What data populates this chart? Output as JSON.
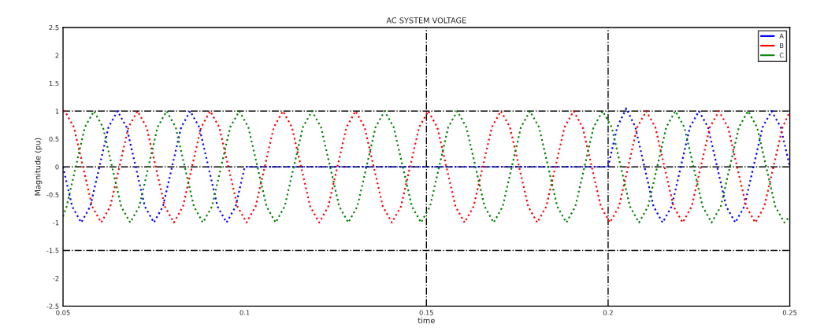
{
  "chart_data": {
    "type": "line",
    "title": "AC SYSTEM VOLTAGE",
    "xlabel": "time",
    "ylabel": "Magnitude (pu)",
    "xlim": [
      0.05,
      0.25
    ],
    "xticks": [
      0.05,
      0.1,
      0.15,
      0.2,
      0.25
    ],
    "ylim": [
      -2.5,
      2.5
    ],
    "yticks": [
      -2.5,
      -2,
      -1.5,
      -1,
      -0.5,
      0,
      0.5,
      1,
      1.5,
      2,
      2.5
    ],
    "grid": false,
    "legend": "top right",
    "line_style": "dotted",
    "marker": "none",
    "ref_lines": [
      {
        "axis": "y",
        "value": 1,
        "color": "#000000",
        "line_style": "dashdot"
      },
      {
        "axis": "y",
        "value": 0,
        "color": "#000000",
        "line_style": "dashdot"
      },
      {
        "axis": "y",
        "value": -1.5,
        "color": "#000000",
        "line_style": "dashdot"
      },
      {
        "axis": "x",
        "value": 0.15,
        "color": "#000000",
        "line_style": "dashdot"
      },
      {
        "axis": "x",
        "value": 0.2,
        "color": "#000000",
        "line_style": "dashdot"
      }
    ],
    "series": [
      {
        "name": "A",
        "color": "#0000ff",
        "x": [
          0.05,
          0.0525,
          0.055,
          0.0575,
          0.06,
          0.0625,
          0.065,
          0.0675,
          0.07,
          0.0725,
          0.075,
          0.0775,
          0.08,
          0.0825,
          0.085,
          0.0875,
          0.09,
          0.0925,
          0.095,
          0.0975,
          0.1,
          0.2,
          0.2025,
          0.205,
          0.2075,
          0.21,
          0.2125,
          0.215,
          0.2175,
          0.22,
          0.2225,
          0.225,
          0.2275,
          0.23,
          0.2325,
          0.235,
          0.2375,
          0.24,
          0.2425,
          0.245,
          0.2475,
          0.25
        ],
        "values": [
          0,
          -0.71,
          -1,
          -0.71,
          0,
          0.71,
          1,
          0.71,
          0,
          -0.71,
          -1,
          -0.71,
          0,
          0.71,
          1,
          0.71,
          0,
          -0.71,
          -1,
          -0.71,
          0,
          0,
          0.71,
          1.05,
          0.71,
          0,
          -0.71,
          -1,
          -0.71,
          0,
          0.71,
          1,
          0.71,
          0,
          -0.71,
          -1,
          -0.71,
          0,
          0.71,
          1,
          0.71,
          0
        ]
      },
      {
        "name": "B",
        "color": "#ff0000",
        "x": [
          0.05,
          0.0505,
          0.053,
          0.0555,
          0.058,
          0.0605,
          0.063,
          0.0655,
          0.068,
          0.0705,
          0.073,
          0.0755,
          0.078,
          0.0805,
          0.083,
          0.0855,
          0.088,
          0.0905,
          0.093,
          0.0955,
          0.098,
          0.1005,
          0.103,
          0.1055,
          0.108,
          0.1105,
          0.113,
          0.1155,
          0.118,
          0.1205,
          0.123,
          0.1255,
          0.128,
          0.1305,
          0.133,
          0.1355,
          0.138,
          0.1405,
          0.143,
          0.1455,
          0.148,
          0.1505,
          0.153,
          0.1555,
          0.158,
          0.1605,
          0.163,
          0.1655,
          0.168,
          0.1705,
          0.173,
          0.1755,
          0.178,
          0.1805,
          0.183,
          0.1855,
          0.188,
          0.1905,
          0.193,
          0.1955,
          0.198,
          0.2005,
          0.203,
          0.2055,
          0.208,
          0.2105,
          0.213,
          0.2155,
          0.218,
          0.2205,
          0.223,
          0.2255,
          0.228,
          0.2305,
          0.233,
          0.2355,
          0.238,
          0.2405,
          0.243,
          0.2455,
          0.248,
          0.25
        ],
        "values": [
          1,
          1,
          0.71,
          0,
          -0.71,
          -1,
          -0.71,
          0,
          0.71,
          1,
          0.71,
          0,
          -0.71,
          -1,
          -0.71,
          0,
          0.71,
          1,
          0.71,
          0,
          -0.71,
          -1,
          -0.71,
          0,
          0.71,
          1,
          0.71,
          0,
          -0.71,
          -1,
          -0.71,
          0,
          0.71,
          1,
          0.71,
          0,
          -0.71,
          -1,
          -0.71,
          0,
          0.71,
          1,
          0.71,
          0,
          -0.71,
          -1,
          -0.71,
          0,
          0.71,
          1,
          0.71,
          0,
          -0.71,
          -1,
          -0.71,
          0,
          0.71,
          1,
          0.71,
          0,
          -0.71,
          -1,
          -0.71,
          0,
          0.71,
          1,
          0.71,
          0,
          -0.71,
          -1,
          -0.71,
          0,
          0.71,
          1,
          0.71,
          0,
          -0.71,
          -1,
          -0.71,
          0,
          0.71,
          0.99
        ]
      },
      {
        "name": "C",
        "color": "#008000",
        "x": [
          0.05,
          0.051,
          0.0535,
          0.056,
          0.0585,
          0.061,
          0.0635,
          0.066,
          0.0685,
          0.071,
          0.0735,
          0.076,
          0.0785,
          0.081,
          0.0835,
          0.086,
          0.0885,
          0.091,
          0.0935,
          0.096,
          0.0985,
          0.101,
          0.1035,
          0.106,
          0.1085,
          0.111,
          0.1135,
          0.116,
          0.1185,
          0.121,
          0.1235,
          0.126,
          0.1285,
          0.131,
          0.1335,
          0.136,
          0.1385,
          0.141,
          0.1435,
          0.146,
          0.1485,
          0.151,
          0.1535,
          0.156,
          0.1585,
          0.161,
          0.1635,
          0.166,
          0.1685,
          0.171,
          0.1735,
          0.176,
          0.1785,
          0.181,
          0.1835,
          0.186,
          0.1885,
          0.191,
          0.1935,
          0.196,
          0.1985,
          0.201,
          0.2035,
          0.206,
          0.2085,
          0.211,
          0.2135,
          0.216,
          0.2185,
          0.221,
          0.2235,
          0.226,
          0.2285,
          0.231,
          0.2335,
          0.236,
          0.2385,
          0.241,
          0.2435,
          0.246,
          0.2485,
          0.25
        ],
        "values": [
          -0.89,
          -0.71,
          0,
          0.71,
          1,
          0.71,
          0,
          -0.71,
          -1,
          -0.71,
          0,
          0.71,
          1,
          0.71,
          0,
          -0.71,
          -1,
          -0.71,
          0,
          0.71,
          1,
          0.71,
          0,
          -0.71,
          -1,
          -0.71,
          0,
          0.71,
          1,
          0.71,
          0,
          -0.71,
          -1,
          -0.71,
          0,
          0.71,
          1,
          0.71,
          0,
          -0.71,
          -1,
          -0.71,
          0,
          0.71,
          1,
          0.71,
          0,
          -0.71,
          -1,
          -0.71,
          0,
          0.71,
          1,
          0.71,
          0,
          -0.71,
          -1,
          -0.71,
          0,
          0.71,
          1,
          0.71,
          0,
          -0.71,
          -1,
          -0.71,
          0,
          0.71,
          1,
          0.71,
          0,
          -0.71,
          -1,
          -0.71,
          0,
          0.71,
          1,
          0.71,
          0,
          -0.71,
          -1,
          -0.89
        ]
      }
    ]
  }
}
